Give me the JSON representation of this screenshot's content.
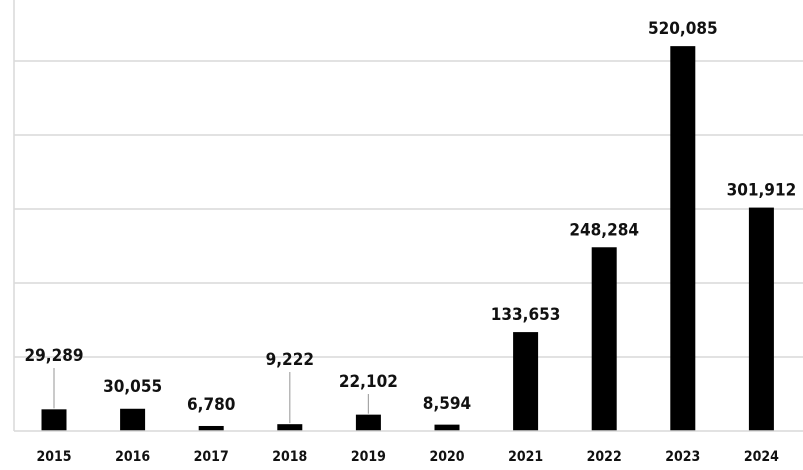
{
  "chart_data": {
    "type": "bar",
    "categories": [
      "2015",
      "2016",
      "2017",
      "2018",
      "2019",
      "2020",
      "2021",
      "2022",
      "2023",
      "2024"
    ],
    "values": [
      29289,
      30055,
      6780,
      9222,
      22102,
      8594,
      133653,
      248284,
      520085,
      301912
    ],
    "value_labels": [
      "29,289",
      "30,055",
      "6,780",
      "9,222",
      "22,102",
      "8,594",
      "133,653",
      "248,284",
      "520,085",
      "301,912"
    ],
    "title": "",
    "xlabel": "",
    "ylabel": "",
    "ylim": [
      0,
      600000
    ],
    "grid": true,
    "bar_color": "#000000",
    "grid_color": "#d9d9d9"
  }
}
